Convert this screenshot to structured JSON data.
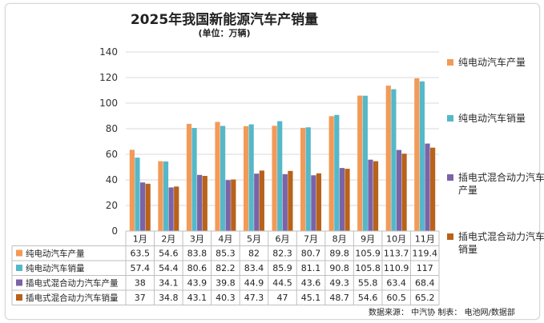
{
  "chart_data": {
    "type": "bar",
    "title": "2025年我国新能源汽车产销量",
    "subtitle": "(单位：万辆)",
    "categories": [
      "1月",
      "2月",
      "3月",
      "4月",
      "5月",
      "6月",
      "7月",
      "8月",
      "9月",
      "10月",
      "11月"
    ],
    "ylim": [
      0,
      140
    ],
    "yticks": [
      0,
      20,
      40,
      60,
      80,
      100,
      120,
      140
    ],
    "grid": true,
    "legend_placement": "right",
    "series": [
      {
        "name": "纯电动汽车产量",
        "legend": "纯电动汽车产量",
        "color": "#f29a58",
        "values": [
          63.5,
          54.6,
          83.8,
          85.3,
          82,
          82.3,
          80.7,
          89.8,
          105.9,
          113.7,
          119.4
        ]
      },
      {
        "name": "纯电动汽车销量",
        "legend": "纯电动汽车销量",
        "color": "#55b8c8",
        "values": [
          57.4,
          54.4,
          80.6,
          82.2,
          83.4,
          85.9,
          81.1,
          90.8,
          105.8,
          110.9,
          117
        ]
      },
      {
        "name": "插电式混合动力汽车产量",
        "legend": "插电式混合动力汽车产量",
        "color": "#7b63a8",
        "values": [
          38,
          34.1,
          43.9,
          39.8,
          44.9,
          44.5,
          43.6,
          49.3,
          55.8,
          63.4,
          68.4
        ]
      },
      {
        "name": "插电式混合动力汽车销量",
        "legend": "插电式混合动力汽车销量",
        "color": "#b8621a",
        "values": [
          37,
          34.8,
          43.1,
          40.3,
          47.3,
          47,
          45.1,
          48.7,
          54.6,
          60.5,
          65.2
        ]
      }
    ],
    "table_labels": {
      "0": [
        "63.5",
        "54.6",
        "83.8",
        "85.3",
        "82",
        "82.3",
        "80.7",
        "89.8",
        "105.9",
        "113.7",
        "119.4"
      ],
      "1": [
        "57.4",
        "54.4",
        "80.6",
        "82.2",
        "83.4",
        "85.9",
        "81.1",
        "90.8",
        "105.8",
        "110.9",
        "117"
      ],
      "2": [
        "38",
        "34.1",
        "43.9",
        "39.8",
        "44.9",
        "44.5",
        "43.6",
        "49.3",
        "55.8",
        "63.4",
        "68.4"
      ],
      "3": [
        "37",
        "34.8",
        "43.1",
        "40.3",
        "47.3",
        "47",
        "45.1",
        "48.7",
        "54.6",
        "60.5",
        "65.2"
      ]
    }
  },
  "source_note": "数据来源： 中汽协   制表： 电池网/数据部"
}
